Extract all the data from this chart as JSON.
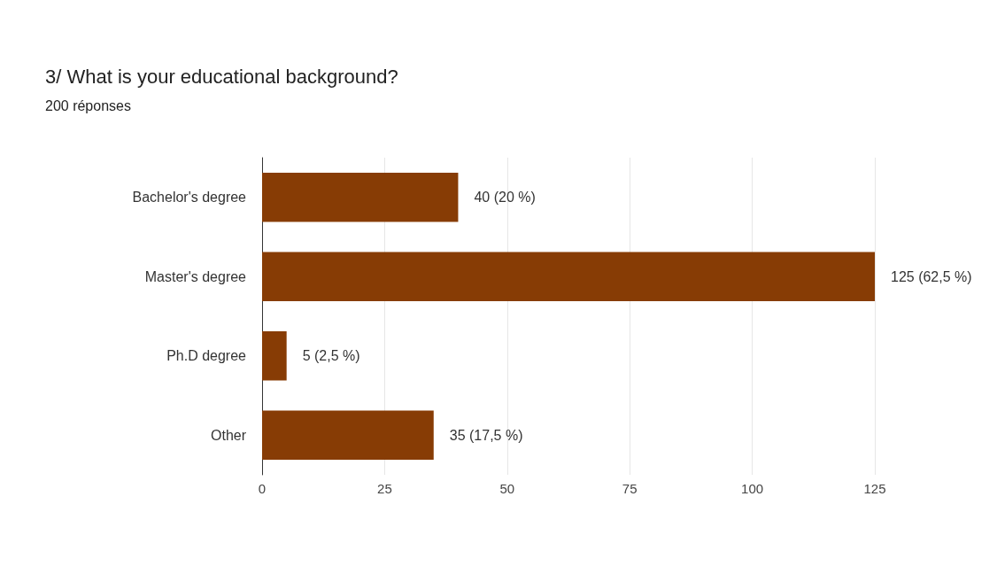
{
  "chart_data": {
    "type": "bar",
    "orientation": "horizontal",
    "title": "3/ What is your educational background?",
    "subtitle": "200 réponses",
    "categories": [
      "Bachelor's degree",
      "Master's degree",
      "Ph.D degree",
      "Other"
    ],
    "values": [
      40,
      125,
      5,
      35
    ],
    "value_labels": [
      "40 (20 %)",
      "125 (62,5 %)",
      "5 (2,5 %)",
      "35 (17,5 %)"
    ],
    "color": "#873c05",
    "xlim": [
      0,
      125
    ],
    "xticks": [
      0,
      25,
      50,
      75,
      100,
      125
    ],
    "grid": "x"
  }
}
